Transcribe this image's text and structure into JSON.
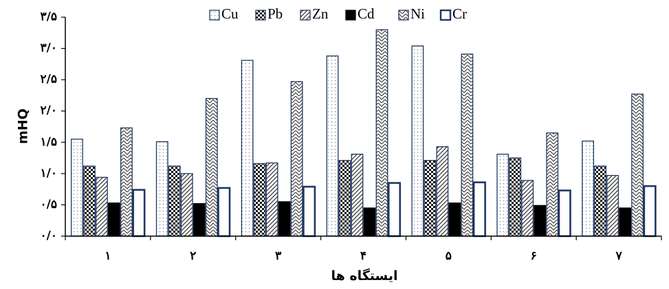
{
  "chart_data": {
    "type": "bar",
    "title": "",
    "xlabel": "ایستگاه ها",
    "ylabel": "mHQ",
    "categories": [
      "۱",
      "۲",
      "۳",
      "۴",
      "۵",
      "۶",
      "۷"
    ],
    "ylim": [
      0,
      3.5
    ],
    "yticks": [
      0,
      0.5,
      1.0,
      1.5,
      2.0,
      2.5,
      3.0,
      3.5
    ],
    "ytick_labels": [
      "۰/۰",
      "۰/۵",
      "۱/۰",
      "۱/۵",
      "۲/۰",
      "۲/۵",
      "۳/۰",
      "۳/۵"
    ],
    "grid": false,
    "legend_position": "top",
    "series": [
      {
        "name": "Cu",
        "pattern": "dots-light",
        "values": [
          1.55,
          1.51,
          2.81,
          2.88,
          3.04,
          1.31,
          1.52
        ]
      },
      {
        "name": "Pb",
        "pattern": "checker",
        "values": [
          1.12,
          1.12,
          1.16,
          1.21,
          1.21,
          1.25,
          1.12
        ]
      },
      {
        "name": "Zn",
        "pattern": "diagonal",
        "values": [
          0.94,
          1.0,
          1.17,
          1.31,
          1.43,
          0.89,
          0.97
        ]
      },
      {
        "name": "Cd",
        "pattern": "solid",
        "values": [
          0.53,
          0.52,
          0.55,
          0.45,
          0.53,
          0.49,
          0.45
        ]
      },
      {
        "name": "Ni",
        "pattern": "zigzag",
        "values": [
          1.73,
          2.2,
          2.47,
          3.3,
          2.91,
          1.65,
          2.27
        ]
      },
      {
        "name": "Cr",
        "pattern": "hollow",
        "values": [
          0.74,
          0.77,
          0.79,
          0.85,
          0.86,
          0.73,
          0.8
        ]
      }
    ],
    "colors": {
      "border": "#1f3864",
      "solid": "#000000",
      "axis": "#000000"
    }
  }
}
